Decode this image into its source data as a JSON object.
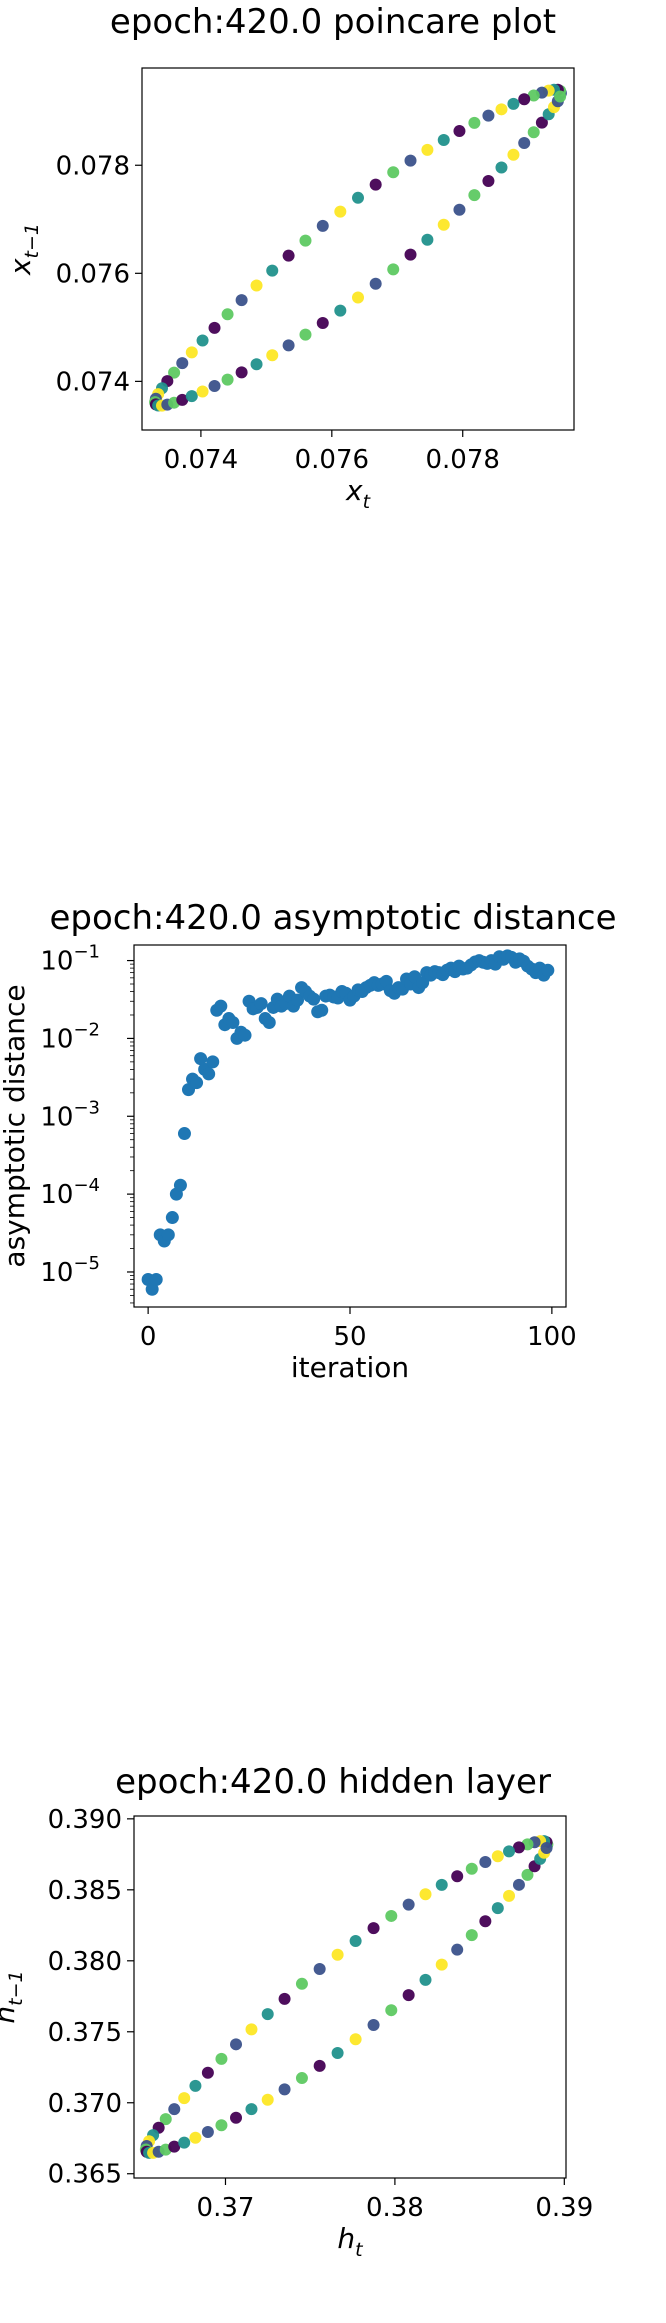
{
  "chart_data": [
    {
      "type": "scatter",
      "title": "epoch:420.0 poincare plot",
      "xlabel": "x_t",
      "ylabel": "x_{t-1}",
      "xlim": [
        0.0731,
        0.0797
      ],
      "ylim": [
        0.0731,
        0.0798
      ],
      "xticks": [
        {
          "v": 0.074,
          "label": "0.074"
        },
        {
          "v": 0.076,
          "label": "0.076"
        },
        {
          "v": 0.078,
          "label": "0.078"
        }
      ],
      "yticks": [
        {
          "v": 0.074,
          "label": "0.074"
        },
        {
          "v": 0.076,
          "label": "0.076"
        },
        {
          "v": 0.078,
          "label": "0.078"
        }
      ],
      "colormap": [
        "#440154",
        "#3b528b",
        "#21918c",
        "#5ec962",
        "#fde725"
      ],
      "loop": {
        "x_min": 0.0733,
        "x_max": 0.0795,
        "y_min": 0.0734,
        "y_max": 0.07955,
        "points": 72
      }
    },
    {
      "type": "scatter",
      "title": "epoch:420.0 asymptotic distance",
      "xlabel": "iteration",
      "ylabel": "asymptotic distance",
      "xlim": [
        -3.5,
        103.5
      ],
      "ylim_log10": [
        -5.45,
        -0.8
      ],
      "yscale": "log",
      "xticks": [
        {
          "v": 0,
          "label": "0"
        },
        {
          "v": 50,
          "label": "50"
        },
        {
          "v": 100,
          "label": "100"
        }
      ],
      "yticks": [
        {
          "e": -5,
          "label": "10",
          "exp": "−5"
        },
        {
          "e": -4,
          "label": "10",
          "exp": "−4"
        },
        {
          "e": -3,
          "label": "10",
          "exp": "−3"
        },
        {
          "e": -2,
          "label": "10",
          "exp": "−2"
        },
        {
          "e": -1,
          "label": "10",
          "exp": "−1"
        }
      ],
      "color": "#1f77b4",
      "x": [
        0,
        1,
        2,
        3,
        4,
        5,
        6,
        7,
        8,
        9,
        10,
        11,
        12,
        13,
        14,
        15,
        16,
        17,
        18,
        19,
        20,
        21,
        22,
        23,
        24,
        25,
        26,
        27,
        28,
        29,
        30,
        31,
        32,
        33,
        34,
        35,
        36,
        37,
        38,
        39,
        40,
        41,
        42,
        43,
        44,
        45,
        46,
        47,
        48,
        49,
        50,
        51,
        52,
        53,
        54,
        55,
        56,
        57,
        58,
        59,
        60,
        61,
        62,
        63,
        64,
        65,
        66,
        67,
        68,
        69,
        70,
        71,
        72,
        73,
        74,
        75,
        76,
        77,
        78,
        79,
        80,
        81,
        82,
        83,
        84,
        85,
        86,
        87,
        88,
        89,
        90,
        91,
        92,
        93,
        94,
        95,
        96,
        97,
        98,
        99
      ],
      "y": [
        8e-06,
        6e-06,
        8e-06,
        3e-05,
        2.5e-05,
        3e-05,
        5e-05,
        0.0001,
        0.00013,
        0.0006,
        0.0022,
        0.003,
        0.0027,
        0.0055,
        0.004,
        0.0035,
        0.005,
        0.023,
        0.026,
        0.015,
        0.018,
        0.016,
        0.01,
        0.012,
        0.011,
        0.03,
        0.024,
        0.025,
        0.028,
        0.018,
        0.016,
        0.025,
        0.032,
        0.026,
        0.028,
        0.035,
        0.026,
        0.031,
        0.045,
        0.04,
        0.035,
        0.032,
        0.022,
        0.023,
        0.035,
        0.036,
        0.034,
        0.033,
        0.04,
        0.038,
        0.031,
        0.035,
        0.042,
        0.04,
        0.045,
        0.048,
        0.052,
        0.048,
        0.05,
        0.054,
        0.041,
        0.038,
        0.045,
        0.043,
        0.058,
        0.05,
        0.062,
        0.045,
        0.052,
        0.07,
        0.065,
        0.072,
        0.07,
        0.066,
        0.075,
        0.08,
        0.072,
        0.085,
        0.078,
        0.08,
        0.088,
        0.096,
        0.1,
        0.095,
        0.092,
        0.1,
        0.09,
        0.112,
        0.104,
        0.115,
        0.11,
        0.095,
        0.105,
        0.098,
        0.085,
        0.078,
        0.07,
        0.08,
        0.065,
        0.075
      ]
    },
    {
      "type": "scatter",
      "title": "epoch:420.0 hidden layer",
      "xlabel": "h_t",
      "ylabel": "h_{t-1}",
      "xlim": [
        0.3646,
        0.3901
      ],
      "ylim": [
        0.3647,
        0.3902
      ],
      "xticks": [
        {
          "v": 0.37,
          "label": "0.37"
        },
        {
          "v": 0.38,
          "label": "0.38"
        },
        {
          "v": 0.39,
          "label": "0.39"
        }
      ],
      "yticks": [
        {
          "v": 0.365,
          "label": "0.365"
        },
        {
          "v": 0.37,
          "label": "0.370"
        },
        {
          "v": 0.375,
          "label": "0.375"
        },
        {
          "v": 0.38,
          "label": "0.380"
        },
        {
          "v": 0.385,
          "label": "0.385"
        },
        {
          "v": 0.39,
          "label": "0.390"
        }
      ],
      "colormap": [
        "#440154",
        "#3b528b",
        "#21918c",
        "#5ec962",
        "#fde725"
      ],
      "loop": {
        "x_min": 0.3653,
        "x_max": 0.389,
        "y_min": 0.3659,
        "y_max": 0.389,
        "points": 70
      }
    }
  ]
}
